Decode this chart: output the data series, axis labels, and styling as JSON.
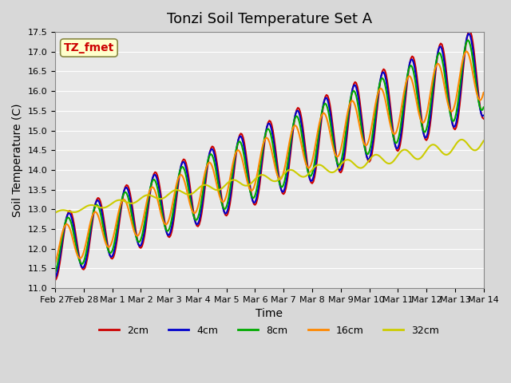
{
  "title": "Tonzi Soil Temperature Set A",
  "xlabel": "Time",
  "ylabel": "Soil Temperature (C)",
  "ylim": [
    11.0,
    17.5
  ],
  "yticks": [
    11.0,
    11.5,
    12.0,
    12.5,
    13.0,
    13.5,
    14.0,
    14.5,
    15.0,
    15.5,
    16.0,
    16.5,
    17.0,
    17.5
  ],
  "xtick_labels": [
    "Feb 27",
    "Feb 28",
    "Mar 1",
    "Mar 2",
    "Mar 3",
    "Mar 4",
    "Mar 5",
    "Mar 6",
    "Mar 7",
    "Mar 8",
    "Mar 9",
    "Mar 10",
    "Mar 11",
    "Mar 12",
    "Mar 13",
    "Mar 14"
  ],
  "series": {
    "2cm": {
      "color": "#cc0000",
      "linewidth": 1.5
    },
    "4cm": {
      "color": "#0000cc",
      "linewidth": 1.5
    },
    "8cm": {
      "color": "#00aa00",
      "linewidth": 1.5
    },
    "16cm": {
      "color": "#ff8800",
      "linewidth": 1.5
    },
    "32cm": {
      "color": "#cccc00",
      "linewidth": 1.5
    }
  },
  "annotation_text": "TZ_fmet",
  "annotation_color": "#cc0000",
  "annotation_bg": "#ffffcc",
  "annotation_border": "#888844",
  "grid_color": "#ffffff",
  "title_fontsize": 13,
  "axis_label_fontsize": 10,
  "tick_fontsize": 8
}
